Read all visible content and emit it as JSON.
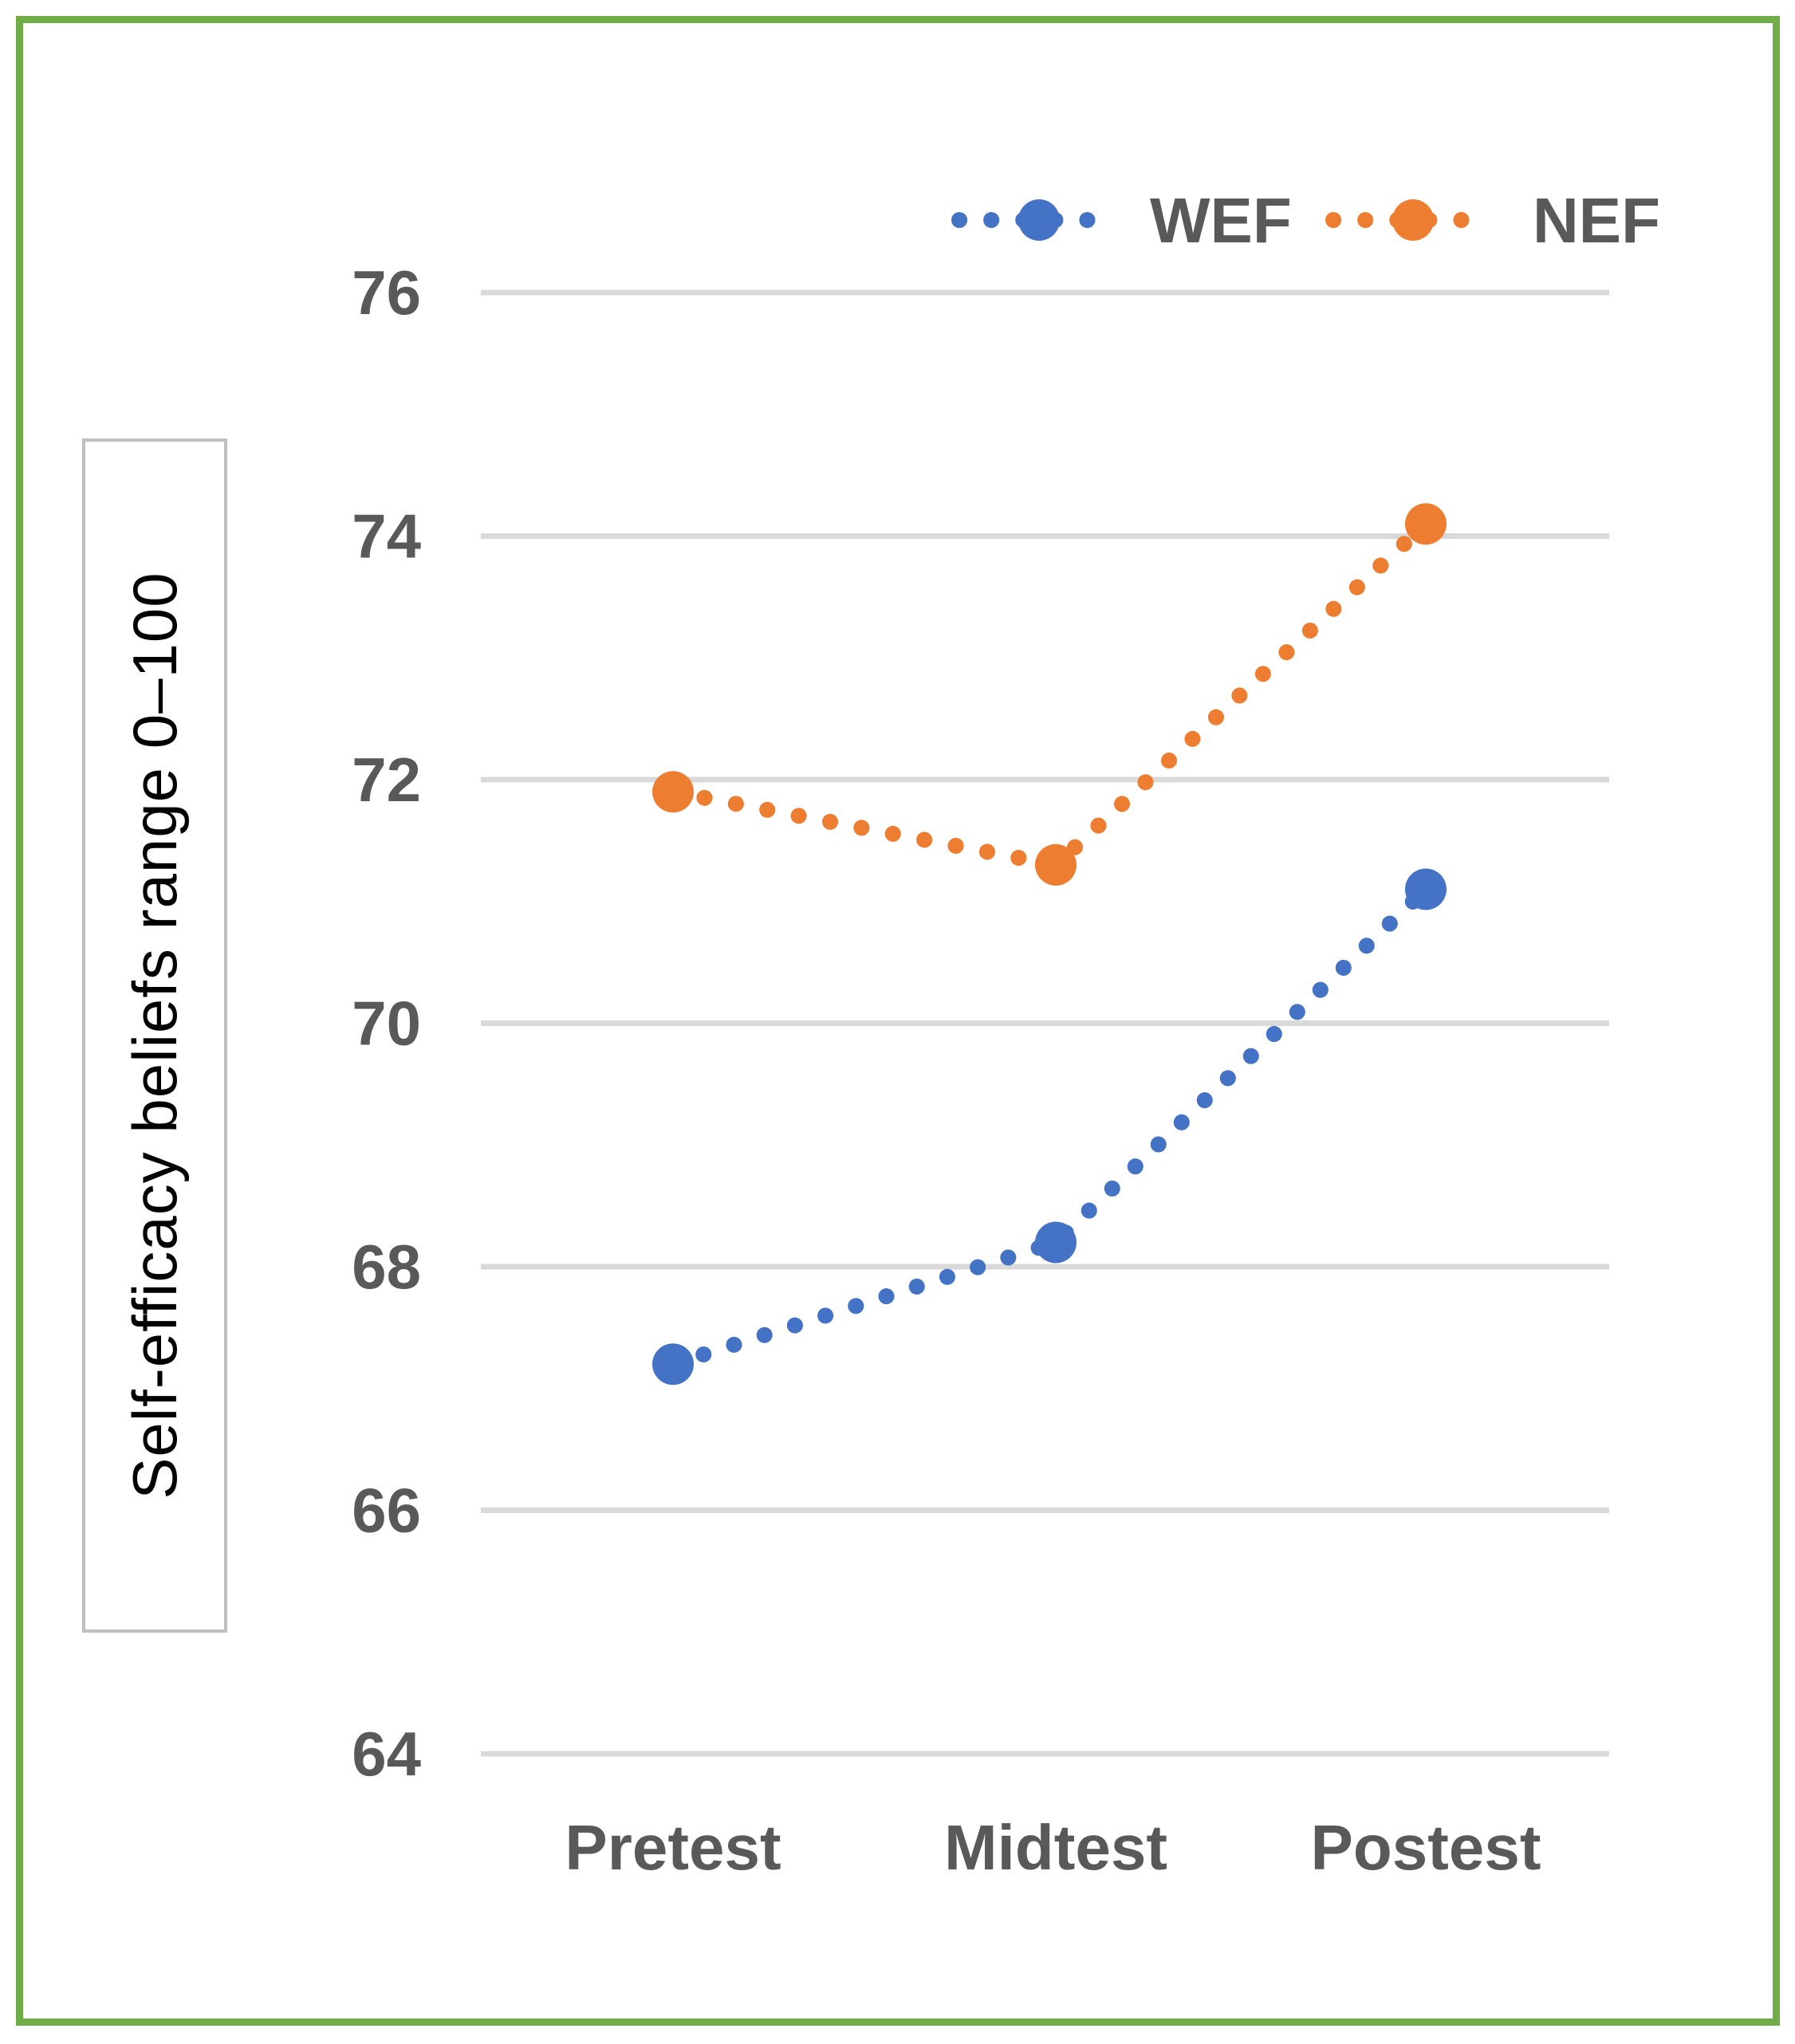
{
  "figure": {
    "border_color": "#70AD47",
    "background_color": "#FFFFFF",
    "gridline_color": "#D9D9D9",
    "tick_label_color": "#595959",
    "axis_title_color": "#000000",
    "axis_title_box_border_color": "#BFBFBF"
  },
  "chart_data": {
    "type": "line",
    "line_style": "dotted",
    "categories": [
      "Pretest",
      "Midtest",
      "Postest"
    ],
    "series": [
      {
        "name": "WEF",
        "color": "#4472C4",
        "values": [
          67.2,
          68.2,
          71.1
        ]
      },
      {
        "name": "NEF",
        "color": "#ED7D31",
        "values": [
          71.9,
          71.3,
          74.1
        ]
      }
    ],
    "title": "",
    "xlabel": "",
    "ylabel": "Self-efficacy beliefs range 0–100",
    "ylim": [
      64,
      76
    ],
    "ytick_step": 2,
    "yticks": [
      76,
      74,
      72,
      70,
      68,
      66,
      64
    ],
    "grid": true,
    "legend_position": "top-right"
  }
}
